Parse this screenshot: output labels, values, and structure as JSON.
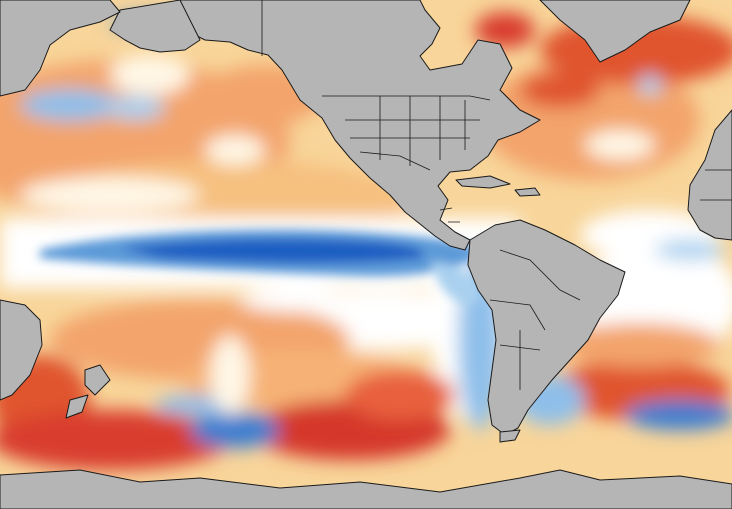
{
  "map": {
    "type": "sea-surface-temperature-anomaly",
    "projection": "equirectangular",
    "legend_visible": false,
    "text_visible": false,
    "colors": {
      "ocean_white": "#ffffff",
      "pale_yellow": "#fbe6a6",
      "light_orange": "#f7c98a",
      "orange": "#f3a46c",
      "red_orange": "#e8613e",
      "deep_red": "#c9262b",
      "light_blue": "#a9d0ef",
      "blue": "#5b9ad8",
      "deep_blue": "#1f5fc2",
      "land": "#b5b5b5",
      "border": "#1a1a1a"
    },
    "regions": {
      "land": [
        "north-america",
        "south-america",
        "greenland",
        "siberia",
        "africa",
        "australia",
        "antarctica",
        "new-zealand",
        "caribbean-islands"
      ],
      "cold_anomaly": [
        "equatorial-pacific-cold-tongue",
        "peru-chile-coast",
        "north-pacific-cold-patch",
        "south-atlantic-cold-patch",
        "southern-ocean-cold-patch",
        "hudson-bay-cold-patch"
      ],
      "warm_anomaly": [
        "north-atlantic",
        "gulf-of-alaska",
        "tasman-sea",
        "south-pacific",
        "south-atlantic-warm-band",
        "labrador-sea"
      ]
    }
  }
}
